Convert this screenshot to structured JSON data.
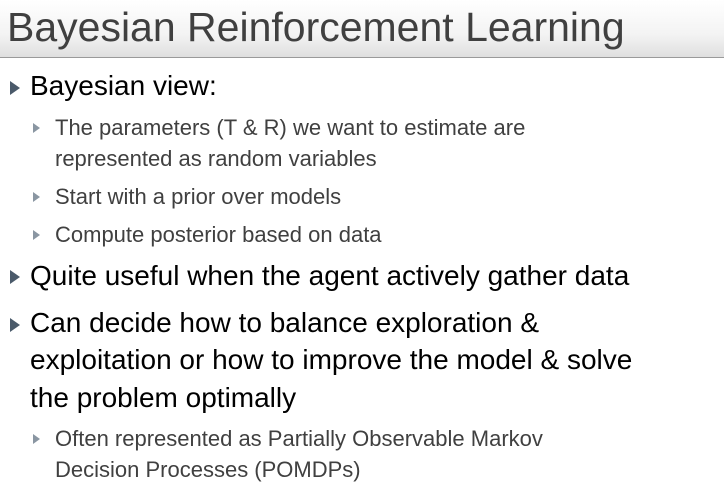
{
  "slide": {
    "title": "Bayesian Reinforcement Learning",
    "bullets": [
      {
        "level": 1,
        "lines": [
          "Bayesian view:"
        ]
      },
      {
        "level": 2,
        "lines": [
          "The parameters (T & R) we want to estimate are",
          "represented as random variables"
        ]
      },
      {
        "level": 2,
        "lines": [
          "Start with a prior over models"
        ]
      },
      {
        "level": 2,
        "lines": [
          "Compute posterior based on data"
        ]
      },
      {
        "level": 1,
        "lines": [
          "Quite useful when the agent actively gather data"
        ]
      },
      {
        "level": 1,
        "lines": [
          "Can decide how to balance exploration &",
          "exploitation or how to improve the model & solve",
          "the problem optimally"
        ]
      },
      {
        "level": 2,
        "lines": [
          "Often represented as Partially Observable Markov",
          "Decision Processes (POMDPs)"
        ]
      }
    ]
  },
  "colors": {
    "title_text": "#404040",
    "level1_text": "#000000",
    "level2_text": "#404040",
    "level1_arrow": "#4a5a6a",
    "level2_arrow": "#8a96a2"
  },
  "icons": {
    "level1_bullet": "triangle-right-icon",
    "level2_bullet": "triangle-right-icon"
  }
}
